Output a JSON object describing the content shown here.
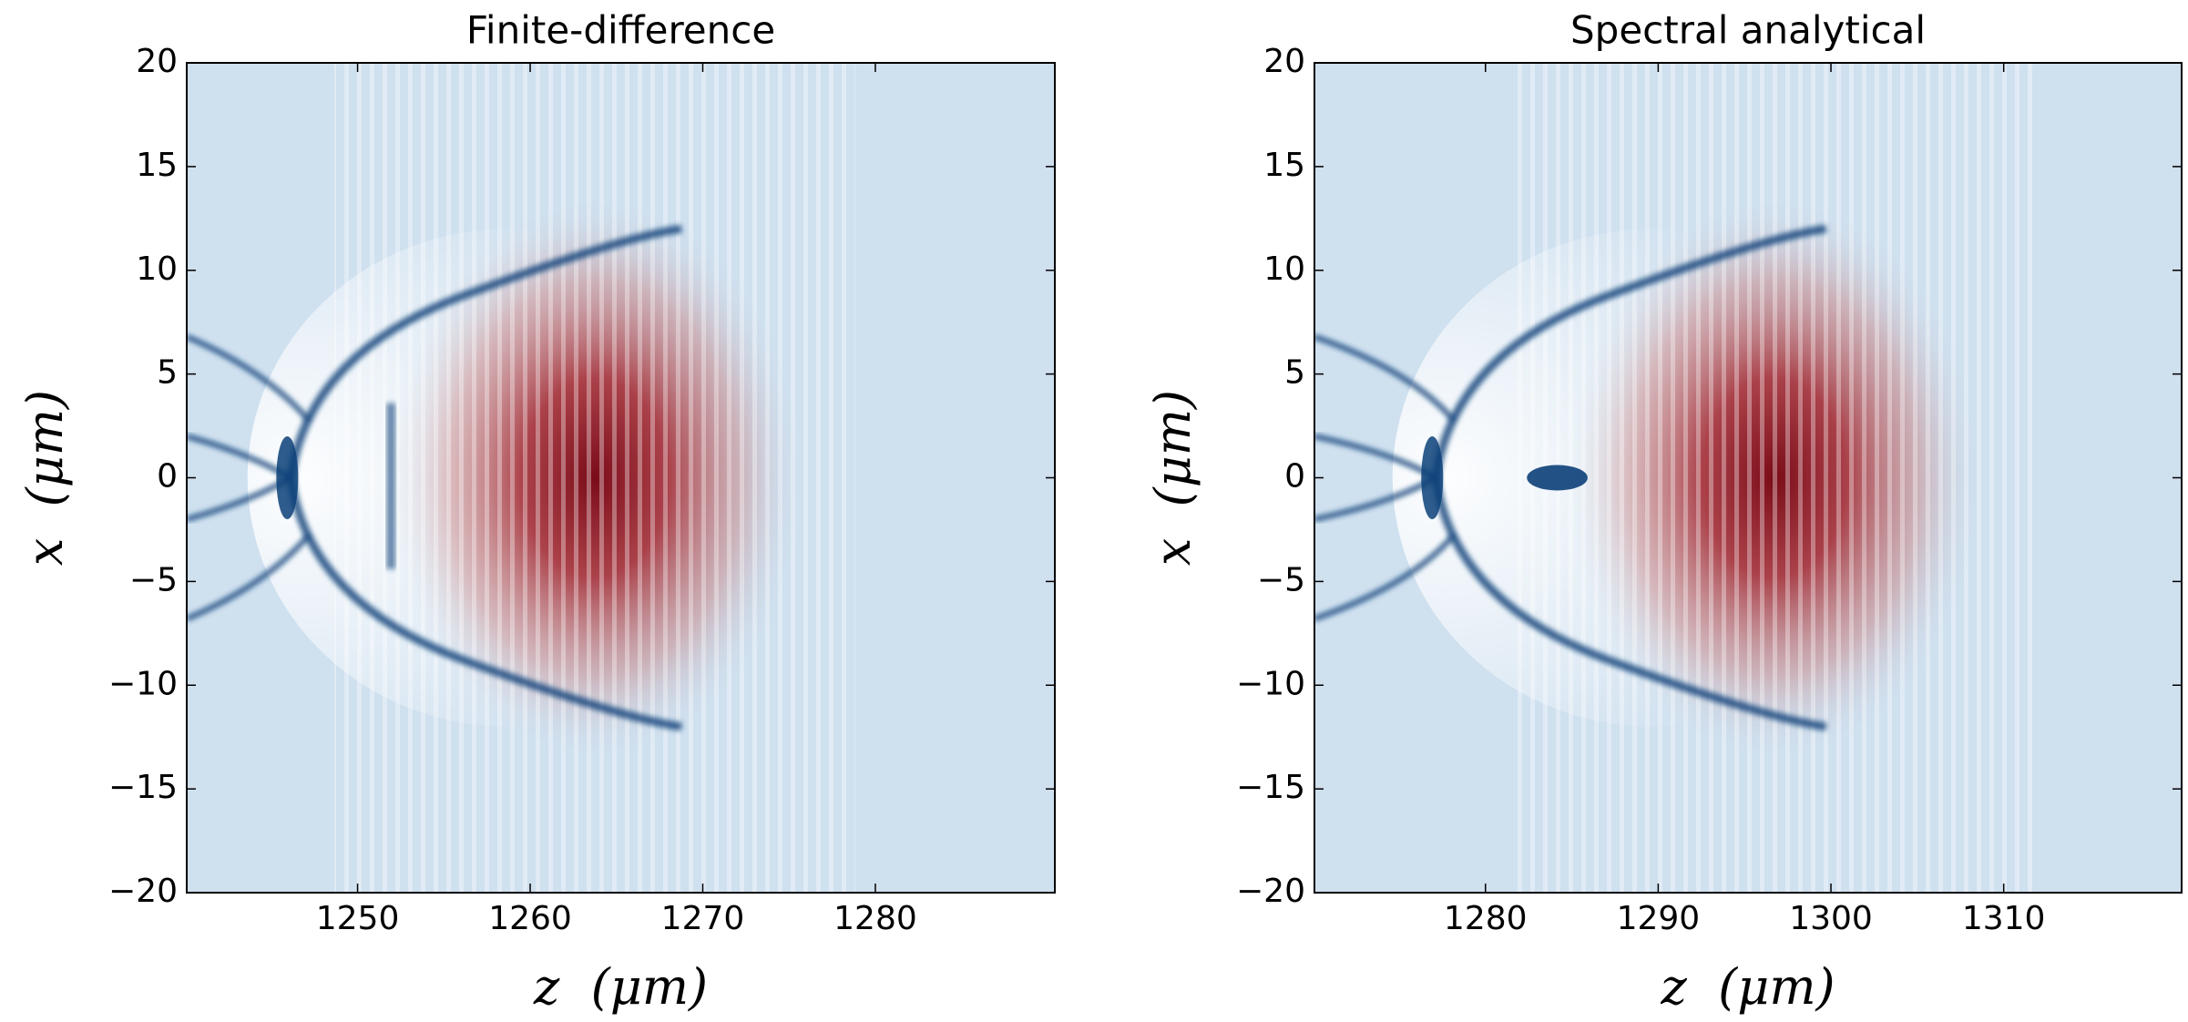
{
  "chart_data": [
    {
      "type": "heatmap",
      "title": "Finite-difference",
      "xlabel": "z  (μm)",
      "ylabel": "x  (μm)",
      "xlim": [
        1240.1,
        1290.4
      ],
      "ylim": [
        -20,
        20
      ],
      "xticks": [
        1250,
        1260,
        1270,
        1280
      ],
      "yticks": [
        {
          "value": -20,
          "label": "−20"
        },
        {
          "value": -15,
          "label": "−15"
        },
        {
          "value": -10,
          "label": "−10"
        },
        {
          "value": -5,
          "label": "−5"
        },
        0,
        5,
        10,
        15,
        20
      ]
    },
    {
      "type": "heatmap",
      "title": "Spectral analytical",
      "xlabel": "z  (μm)",
      "ylabel": "x  (μm)",
      "xlim": [
        1270.1,
        1320.3
      ],
      "ylim": [
        -20,
        20
      ],
      "xticks": [
        1280,
        1290,
        1300,
        1310
      ],
      "yticks": [
        {
          "value": -20,
          "label": "−20"
        },
        {
          "value": -15,
          "label": "−15"
        },
        {
          "value": -10,
          "label": "−10"
        },
        {
          "value": -5,
          "label": "−5"
        },
        0,
        5,
        10,
        15,
        20
      ]
    }
  ]
}
